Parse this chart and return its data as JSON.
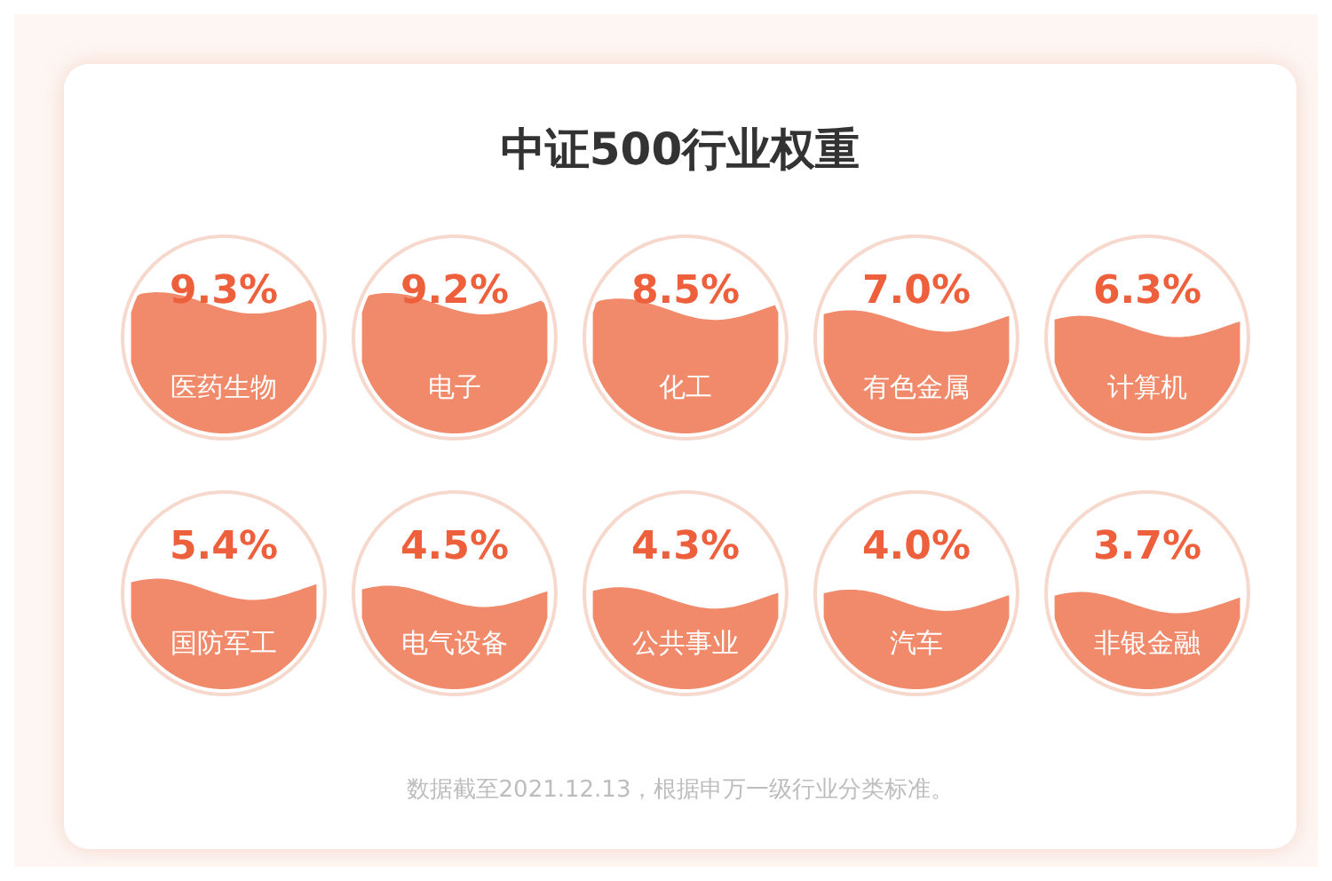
{
  "chart_data": {
    "type": "other",
    "title": "中证500行业权重",
    "categories": [
      "医药生物",
      "电子",
      "化工",
      "有色金属",
      "计算机",
      "国防军工",
      "电气设备",
      "公共事业",
      "汽车",
      "非银金融"
    ],
    "values": [
      9.3,
      9.2,
      8.5,
      7.0,
      6.3,
      5.4,
      4.5,
      4.3,
      4.0,
      3.7
    ],
    "value_labels": [
      "9.3%",
      "9.2%",
      "8.5%",
      "7.0%",
      "6.3%",
      "5.4%",
      "4.5%",
      "4.3%",
      "4.0%",
      "3.7%"
    ],
    "color": "#f08a6a",
    "annotations": [
      "数据截至2021.12.13，根据申万一级行业分类标准。"
    ]
  }
}
